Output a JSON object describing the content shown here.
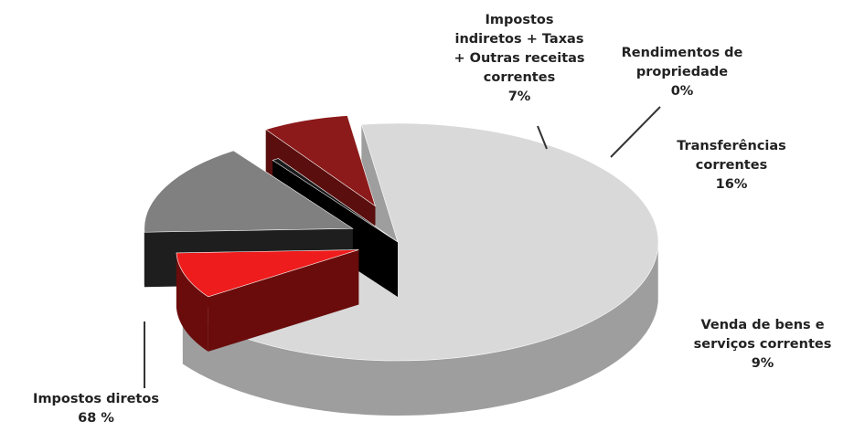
{
  "chart_data": {
    "type": "pie",
    "style": "3d-exploded",
    "legend": "none",
    "slices": [
      {
        "label": [
          "Impostos diretos"
        ],
        "value_label": "68 %",
        "value": 68,
        "color": "#d9d9d9",
        "side": "#9e9e9e"
      },
      {
        "label": [
          "Impostos",
          "indiretos + Taxas",
          "+ Outras receitas",
          "correntes"
        ],
        "value_label": "7%",
        "value": 7,
        "color": "#8c1a1a",
        "side": "#5a0e0e"
      },
      {
        "label": [
          "Rendimentos de",
          "propriedade"
        ],
        "value_label": "0%",
        "value": 0.5,
        "color": "#1a1a1a",
        "side": "#000000"
      },
      {
        "label": [
          "Transferências",
          "correntes"
        ],
        "value_label": "16%",
        "value": 16,
        "color": "#808080",
        "side": "#1e1e1e"
      },
      {
        "label": [
          "Venda de bens e",
          "serviços correntes"
        ],
        "value_label": "9%",
        "value": 9,
        "color": "#ee1c1c",
        "side": "#6a0c0c"
      }
    ]
  }
}
